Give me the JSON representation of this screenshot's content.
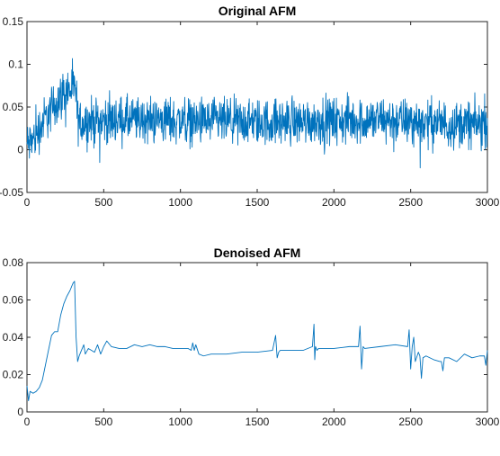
{
  "colors": {
    "series": "#0072BD",
    "axes": "#262626"
  },
  "chart_data": [
    {
      "type": "line",
      "title": "Original AFM",
      "xlabel": "",
      "ylabel": "",
      "xlim": [
        0,
        3000
      ],
      "ylim": [
        -0.05,
        0.15
      ],
      "xticks": [
        0,
        500,
        1000,
        1500,
        2000,
        2500,
        3000
      ],
      "xtick_labels": [
        "0",
        "500",
        "1000",
        "1500",
        "2000",
        "2500",
        "3000"
      ],
      "yticks": [
        -0.05,
        0,
        0.05,
        0.1,
        0.15
      ],
      "ytick_labels": [
        "-0.05",
        "0",
        "0.05",
        "0.1",
        "0.15"
      ],
      "grid": false,
      "series": [
        {
          "x": [
            0,
            20,
            40,
            60,
            80,
            100,
            120,
            140,
            160,
            180,
            200,
            220,
            240,
            260,
            280,
            300,
            320,
            330,
            340,
            400,
            500,
            600,
            700,
            800,
            900,
            1000,
            1100,
            1200,
            1300,
            1400,
            1500,
            1600,
            1700,
            1800,
            1900,
            2000,
            2100,
            2200,
            2300,
            2400,
            2500,
            2600,
            2700,
            2800,
            2900,
            3000
          ],
          "values": [
            0.005,
            0.008,
            0.012,
            0.018,
            0.025,
            0.031,
            0.037,
            0.042,
            0.047,
            0.052,
            0.057,
            0.062,
            0.066,
            0.069,
            0.07,
            0.07,
            0.068,
            0.034,
            0.032,
            0.033,
            0.034,
            0.035,
            0.034,
            0.035,
            0.035,
            0.034,
            0.033,
            0.033,
            0.032,
            0.032,
            0.032,
            0.032,
            0.033,
            0.033,
            0.034,
            0.034,
            0.034,
            0.034,
            0.035,
            0.034,
            0.033,
            0.032,
            0.031,
            0.03,
            0.03,
            0.03
          ],
          "noise_amplitude": 0.028
        }
      ]
    },
    {
      "type": "line",
      "title": "Denoised AFM",
      "xlabel": "",
      "ylabel": "",
      "xlim": [
        0,
        3000
      ],
      "ylim": [
        0,
        0.08
      ],
      "xticks": [
        0,
        500,
        1000,
        1500,
        2000,
        2500,
        3000
      ],
      "xtick_labels": [
        "0",
        "500",
        "1000",
        "1500",
        "2000",
        "2500",
        "3000"
      ],
      "yticks": [
        0,
        0.02,
        0.04,
        0.06,
        0.08
      ],
      "ytick_labels": [
        "0",
        "0.02",
        "0.04",
        "0.06",
        "0.08"
      ],
      "grid": false,
      "series": [
        {
          "x": [
            0,
            10,
            20,
            40,
            60,
            80,
            100,
            120,
            140,
            160,
            180,
            200,
            220,
            240,
            260,
            280,
            300,
            310,
            320,
            330,
            340,
            350,
            370,
            380,
            400,
            420,
            440,
            460,
            480,
            500,
            520,
            550,
            600,
            650,
            700,
            750,
            800,
            850,
            900,
            950,
            1000,
            1050,
            1070,
            1080,
            1090,
            1100,
            1120,
            1150,
            1200,
            1300,
            1400,
            1500,
            1600,
            1620,
            1630,
            1640,
            1650,
            1700,
            1800,
            1860,
            1870,
            1875,
            1880,
            1890,
            1900,
            2000,
            2100,
            2160,
            2170,
            2180,
            2190,
            2200,
            2300,
            2400,
            2480,
            2490,
            2500,
            2510,
            2520,
            2530,
            2550,
            2560,
            2570,
            2580,
            2600,
            2650,
            2690,
            2700,
            2710,
            2720,
            2750,
            2800,
            2850,
            2900,
            2950,
            2980,
            2990,
            3000
          ],
          "values": [
            0.014,
            0.006,
            0.011,
            0.01,
            0.011,
            0.013,
            0.017,
            0.025,
            0.033,
            0.041,
            0.043,
            0.043,
            0.052,
            0.058,
            0.062,
            0.065,
            0.069,
            0.07,
            0.04,
            0.027,
            0.03,
            0.032,
            0.036,
            0.031,
            0.034,
            0.033,
            0.032,
            0.036,
            0.031,
            0.035,
            0.038,
            0.035,
            0.034,
            0.034,
            0.036,
            0.035,
            0.036,
            0.035,
            0.035,
            0.034,
            0.034,
            0.034,
            0.033,
            0.037,
            0.033,
            0.036,
            0.031,
            0.03,
            0.031,
            0.031,
            0.032,
            0.032,
            0.033,
            0.041,
            0.029,
            0.032,
            0.033,
            0.033,
            0.033,
            0.035,
            0.047,
            0.028,
            0.035,
            0.033,
            0.034,
            0.034,
            0.035,
            0.035,
            0.046,
            0.023,
            0.035,
            0.034,
            0.035,
            0.036,
            0.035,
            0.044,
            0.023,
            0.035,
            0.04,
            0.027,
            0.032,
            0.03,
            0.018,
            0.029,
            0.03,
            0.028,
            0.027,
            0.027,
            0.022,
            0.029,
            0.029,
            0.027,
            0.031,
            0.029,
            0.03,
            0.03,
            0.025,
            0.033
          ]
        }
      ]
    }
  ]
}
